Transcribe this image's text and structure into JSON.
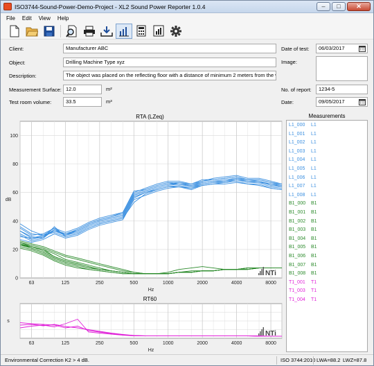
{
  "window": {
    "title": "ISO3744-Sound-Power-Demo-Project - XL2 Sound Power Reporter 1.0.4"
  },
  "menu": {
    "file": "File",
    "edit": "Edit",
    "view": "View",
    "help": "Help"
  },
  "toolbar": {
    "buttons": [
      "new-file-icon",
      "open-folder-icon",
      "save-icon",
      "preview-icon",
      "print-icon",
      "import-icon",
      "spectrum-icon",
      "calculator-icon",
      "report-icon",
      "settings-icon"
    ],
    "active": "spectrum-icon"
  },
  "form": {
    "client_label": "Client:",
    "client_value": "Manufacturer ABC",
    "object_label": "Object:",
    "object_value": "Drilling Machine Type xyz",
    "description_label": "Description:",
    "description_value": "The object was placed on the reflecting floor with a distance of minimum 2 meters from the wall",
    "surface_label": "Measurement Surface:",
    "surface_value": "12.0",
    "surface_unit": "m²",
    "volume_label": "Test room volume:",
    "volume_value": "33.5",
    "volume_unit": "m³",
    "date_of_test_label": "Date of test:",
    "date_of_test_value": "06/03/2017",
    "image_label": "Image:",
    "report_no_label": "No. of report:",
    "report_no_value": "1234-5",
    "date_label": "Date:",
    "date_value": "09/05/2017"
  },
  "measurements": {
    "title": "Measurements",
    "items": [
      {
        "name": "L1_000",
        "group": "L1",
        "color": "#3a8fe0"
      },
      {
        "name": "L1_001",
        "group": "L1",
        "color": "#3a8fe0"
      },
      {
        "name": "L1_002",
        "group": "L1",
        "color": "#3a8fe0"
      },
      {
        "name": "L1_003",
        "group": "L1",
        "color": "#3a8fe0"
      },
      {
        "name": "L1_004",
        "group": "L1",
        "color": "#3a8fe0"
      },
      {
        "name": "L1_005",
        "group": "L1",
        "color": "#3a8fe0"
      },
      {
        "name": "L1_006",
        "group": "L1",
        "color": "#3a8fe0"
      },
      {
        "name": "L1_007",
        "group": "L1",
        "color": "#3a8fe0"
      },
      {
        "name": "L1_008",
        "group": "L1",
        "color": "#3a8fe0"
      },
      {
        "name": "B1_000",
        "group": "B1",
        "color": "#2a8a2a"
      },
      {
        "name": "B1_001",
        "group": "B1",
        "color": "#2a8a2a"
      },
      {
        "name": "B1_002",
        "group": "B1",
        "color": "#2a8a2a"
      },
      {
        "name": "B1_003",
        "group": "B1",
        "color": "#2a8a2a"
      },
      {
        "name": "B1_004",
        "group": "B1",
        "color": "#2a8a2a"
      },
      {
        "name": "B1_005",
        "group": "B1",
        "color": "#2a8a2a"
      },
      {
        "name": "B1_006",
        "group": "B1",
        "color": "#2a8a2a"
      },
      {
        "name": "B1_007",
        "group": "B1",
        "color": "#2a8a2a"
      },
      {
        "name": "B1_008",
        "group": "B1",
        "color": "#2a8a2a"
      },
      {
        "name": "T1_001",
        "group": "T1",
        "color": "#e020d8"
      },
      {
        "name": "T1_003",
        "group": "T1",
        "color": "#e020d8"
      },
      {
        "name": "T1_004",
        "group": "T1",
        "color": "#e020d8"
      }
    ]
  },
  "status": {
    "correction": "Environmental Correction K2 > 4 dB.",
    "standard": "ISO 3744:2010",
    "lwa": "LWA=88.2",
    "lwz": "LWZ=87.8"
  },
  "chart_data": [
    {
      "type": "line",
      "title": "RTA (LZeq)",
      "xlabel": "Hz",
      "ylabel": "dB",
      "xscale": "log",
      "xlim": [
        50,
        10000
      ],
      "ylim": [
        0,
        110
      ],
      "xticks": [
        "63",
        "125",
        "250",
        "500",
        "1000",
        "2000",
        "4000",
        "8000"
      ],
      "xtick_values": [
        63,
        125,
        250,
        500,
        1000,
        2000,
        4000,
        8000
      ],
      "yticks": [
        0,
        20,
        40,
        60,
        80,
        100
      ],
      "grid": true,
      "x": [
        50,
        63,
        80,
        100,
        125,
        160,
        200,
        250,
        315,
        400,
        500,
        630,
        800,
        1000,
        1250,
        1600,
        2000,
        2500,
        3150,
        4000,
        5000,
        6300,
        8000,
        10000
      ],
      "series": [
        {
          "group": "L1",
          "color": "#3a8fe0",
          "values": [
            33,
            28,
            29,
            34,
            30,
            33,
            37,
            40,
            42,
            44,
            58,
            61,
            64,
            66,
            66,
            64,
            67,
            68,
            68,
            70,
            68,
            68,
            65,
            64
          ]
        },
        {
          "group": "L1",
          "color": "#3a8fe0",
          "values": [
            30,
            26,
            28,
            36,
            29,
            31,
            35,
            38,
            40,
            42,
            56,
            60,
            62,
            64,
            65,
            63,
            66,
            67,
            67,
            69,
            67,
            67,
            64,
            63
          ]
        },
        {
          "group": "L1",
          "color": "#3a8fe0",
          "values": [
            38,
            33,
            30,
            33,
            31,
            34,
            38,
            41,
            43,
            45,
            59,
            62,
            65,
            67,
            67,
            66,
            68,
            70,
            71,
            72,
            70,
            70,
            68,
            66
          ]
        },
        {
          "group": "L1",
          "color": "#3a8fe0",
          "values": [
            27,
            25,
            27,
            31,
            28,
            30,
            34,
            37,
            39,
            41,
            55,
            58,
            61,
            63,
            64,
            62,
            65,
            66,
            67,
            68,
            66,
            66,
            63,
            62
          ]
        },
        {
          "group": "L1",
          "color": "#3a8fe0",
          "values": [
            35,
            30,
            31,
            35,
            32,
            35,
            39,
            42,
            44,
            46,
            60,
            63,
            66,
            68,
            68,
            66,
            69,
            69,
            70,
            71,
            69,
            69,
            67,
            65
          ]
        },
        {
          "group": "L1",
          "color": "#3a8fe0",
          "values": [
            31,
            27,
            29,
            33,
            30,
            32,
            36,
            39,
            41,
            43,
            57,
            60,
            63,
            65,
            66,
            64,
            66,
            67,
            68,
            69,
            68,
            67,
            66,
            64
          ]
        },
        {
          "group": "L1",
          "color": "#3a8fe0",
          "values": [
            29,
            28,
            30,
            32,
            29,
            31,
            35,
            38,
            40,
            42,
            53,
            59,
            62,
            64,
            64,
            63,
            65,
            66,
            66,
            67,
            66,
            65,
            63,
            62
          ]
        },
        {
          "group": "L1",
          "color": "#3a8fe0",
          "values": [
            33,
            29,
            28,
            34,
            31,
            33,
            37,
            40,
            42,
            44,
            58,
            61,
            64,
            66,
            67,
            65,
            67,
            68,
            69,
            70,
            69,
            68,
            66,
            65
          ]
        },
        {
          "group": "L1",
          "color": "#3a8fe0",
          "values": [
            36,
            31,
            30,
            35,
            30,
            34,
            38,
            41,
            43,
            46,
            61,
            62,
            65,
            67,
            66,
            65,
            68,
            69,
            70,
            71,
            69,
            69,
            67,
            66
          ]
        },
        {
          "group": "B1",
          "color": "#2a8a2a",
          "values": [
            25,
            22,
            20,
            15,
            12,
            10,
            8,
            6,
            5,
            4,
            3,
            3,
            3,
            3,
            4,
            4,
            5,
            5,
            6,
            6,
            7,
            7,
            7,
            7
          ]
        },
        {
          "group": "B1",
          "color": "#2a8a2a",
          "values": [
            23,
            21,
            18,
            14,
            11,
            9,
            7,
            6,
            5,
            4,
            3,
            3,
            3,
            3,
            4,
            4,
            5,
            5,
            6,
            6,
            6,
            7,
            7,
            7
          ]
        },
        {
          "group": "B1",
          "color": "#2a8a2a",
          "values": [
            26,
            24,
            22,
            19,
            16,
            14,
            12,
            10,
            8,
            6,
            4,
            3,
            3,
            3,
            4,
            4,
            5,
            5,
            6,
            6,
            7,
            7,
            7,
            7
          ]
        },
        {
          "group": "B1",
          "color": "#2a8a2a",
          "values": [
            22,
            20,
            17,
            13,
            10,
            8,
            6,
            5,
            4,
            3,
            3,
            3,
            3,
            3,
            4,
            4,
            5,
            5,
            6,
            6,
            6,
            7,
            7,
            7
          ]
        },
        {
          "group": "B1",
          "color": "#2a8a2a",
          "values": [
            24,
            22,
            20,
            17,
            13,
            11,
            9,
            7,
            5,
            4,
            3,
            3,
            3,
            3,
            4,
            4,
            5,
            5,
            6,
            6,
            7,
            7,
            7,
            7
          ]
        },
        {
          "group": "B1",
          "color": "#2a8a2a",
          "values": [
            21,
            19,
            16,
            12,
            9,
            7,
            6,
            5,
            4,
            3,
            3,
            3,
            3,
            3,
            4,
            4,
            5,
            5,
            6,
            6,
            6,
            7,
            7,
            7
          ]
        },
        {
          "group": "B1",
          "color": "#2a8a2a",
          "values": [
            25,
            23,
            21,
            18,
            15,
            13,
            11,
            9,
            7,
            5,
            4,
            3,
            3,
            4,
            6,
            7,
            8,
            7,
            6,
            6,
            7,
            7,
            7,
            7
          ]
        },
        {
          "group": "B1",
          "color": "#2a8a2a",
          "values": [
            23,
            22,
            19,
            15,
            12,
            10,
            8,
            6,
            5,
            4,
            3,
            3,
            3,
            3,
            4,
            5,
            5,
            5,
            6,
            6,
            6,
            7,
            7,
            7
          ]
        },
        {
          "group": "B1",
          "color": "#2a8a2a",
          "values": [
            24,
            21,
            18,
            14,
            11,
            9,
            7,
            6,
            5,
            4,
            3,
            3,
            3,
            3,
            4,
            4,
            5,
            5,
            6,
            6,
            7,
            7,
            7,
            7
          ]
        }
      ]
    },
    {
      "type": "line",
      "title": "RT60",
      "xlabel": "Hz",
      "ylabel": "s",
      "xscale": "log",
      "xlim": [
        50,
        10000
      ],
      "ylim": [
        0,
        1
      ],
      "xticks": [
        "63",
        "125",
        "250",
        "500",
        "1000",
        "2000",
        "4000",
        "8000"
      ],
      "xtick_values": [
        63,
        125,
        250,
        500,
        1000,
        2000,
        4000,
        8000
      ],
      "grid": true,
      "x": [
        50,
        63,
        80,
        100,
        125,
        160,
        200,
        250,
        315,
        400,
        500,
        630,
        800,
        1000,
        1250,
        1600,
        2000,
        2500,
        3150,
        4000,
        5000,
        6300,
        8000,
        10000
      ],
      "series": [
        {
          "group": "T1",
          "color": "#e020d8",
          "values": [
            0.45,
            0.42,
            0.4,
            0.38,
            0.3,
            0.35,
            0.22,
            0.18,
            0.14,
            0.1,
            0.08,
            0.07,
            0.07,
            0.07,
            0.07,
            0.07,
            0.07,
            0.07,
            0.07,
            0.07,
            0.07,
            0.06,
            0.06,
            0.06
          ]
        },
        {
          "group": "T1",
          "color": "#e020d8",
          "values": [
            0.3,
            0.35,
            0.38,
            0.33,
            0.42,
            0.55,
            0.18,
            0.15,
            0.12,
            0.09,
            0.07,
            0.07,
            0.07,
            0.07,
            0.07,
            0.07,
            0.07,
            0.07,
            0.07,
            0.07,
            0.07,
            0.07,
            0.06,
            0.06
          ]
        },
        {
          "group": "T1",
          "color": "#e020d8",
          "values": [
            0.38,
            0.4,
            0.36,
            0.4,
            0.34,
            0.3,
            0.25,
            0.2,
            0.15,
            0.11,
            0.08,
            0.07,
            0.07,
            0.07,
            0.07,
            0.07,
            0.07,
            0.07,
            0.07,
            0.07,
            0.07,
            0.06,
            0.06,
            0.06
          ]
        }
      ]
    }
  ]
}
